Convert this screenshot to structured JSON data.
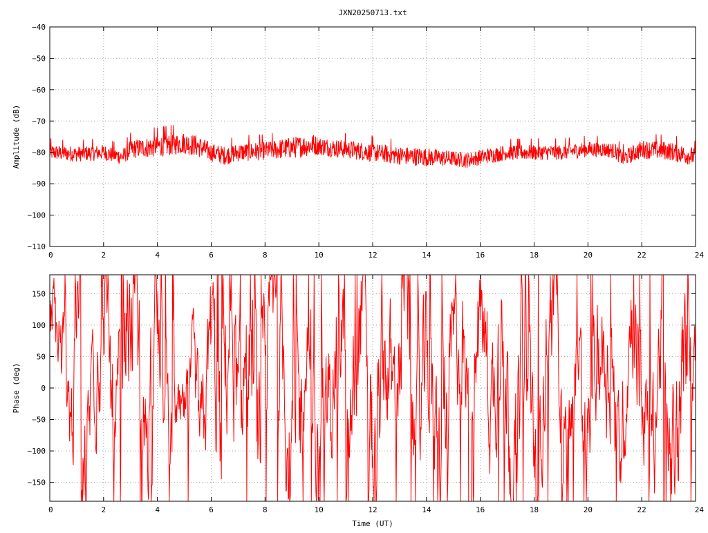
{
  "title": "JXN20250713.txt",
  "colors": {
    "series": "#ff0000",
    "axis": "#000000",
    "grid": "#a0a0a0",
    "background": "#ffffff"
  },
  "chart_data": [
    {
      "type": "line",
      "ylabel": "Amplitude (dB)",
      "xlabel": "",
      "xlim": [
        0,
        24
      ],
      "ylim": [
        -110,
        -40
      ],
      "xticks": [
        0,
        2,
        4,
        6,
        8,
        10,
        12,
        14,
        16,
        18,
        20,
        22,
        24
      ],
      "yticks": [
        -110,
        -100,
        -90,
        -80,
        -70,
        -60,
        -50,
        -40
      ],
      "grid": true,
      "series": [
        {
          "x": [
            0,
            1,
            2,
            2.7,
            3,
            4,
            5,
            5.5,
            6,
            6.5,
            7,
            8,
            9,
            9.8,
            10,
            11,
            12,
            13,
            14,
            15,
            15.5,
            16,
            17,
            18,
            19,
            20,
            20.5,
            21,
            21.3,
            22,
            23,
            24
          ],
          "values": [
            -80,
            -80.5,
            -80,
            -81.5,
            -79,
            -78,
            -77,
            -78,
            -80,
            -81,
            -80,
            -79.5,
            -78.5,
            -77.5,
            -78,
            -79,
            -80,
            -81,
            -81.5,
            -82,
            -82.5,
            -81.5,
            -80,
            -80,
            -80,
            -79,
            -79,
            -79.5,
            -82,
            -79,
            -79.5,
            -81.5
          ],
          "spread": [
            2.5,
            2.5,
            2.5,
            2.5,
            3,
            3.5,
            3.5,
            3.5,
            3,
            3,
            3,
            3,
            3.5,
            3.5,
            3,
            3,
            3,
            3,
            3,
            2.5,
            2.5,
            2.5,
            2.5,
            2.5,
            2.5,
            2.5,
            2.5,
            2.5,
            2.5,
            3,
            3,
            3
          ]
        }
      ]
    },
    {
      "type": "line",
      "ylabel": "Phase (deg)",
      "xlabel": "Time (UT)",
      "xlim": [
        0,
        24
      ],
      "ylim": [
        -180,
        180
      ],
      "xticks": [
        0,
        2,
        4,
        6,
        8,
        10,
        12,
        14,
        16,
        18,
        20,
        22,
        24
      ],
      "yticks": [
        -150,
        -100,
        -50,
        0,
        50,
        100,
        150
      ],
      "grid": true,
      "series": [
        {
          "x": [
            0,
            0.2,
            0.5,
            0.8,
            1.1,
            1.3,
            1.6,
            2.0,
            2.4,
            2.8,
            3.1,
            3.5,
            3.9,
            4.2,
            4.6,
            5.0,
            5.3,
            5.6,
            6.0,
            6.3,
            6.7,
            7.0,
            7.4,
            7.8,
            8.1,
            8.5,
            8.9,
            9.3,
            9.6,
            10.0,
            10.4,
            10.8,
            11.2,
            11.6,
            12.0,
            12.4,
            12.8,
            13.2,
            13.6,
            14.0,
            14.4,
            14.8,
            15.2,
            15.6,
            16.0,
            16.4,
            16.8,
            17.2,
            17.6,
            18.0,
            18.4,
            18.8,
            19.2,
            19.6,
            20.0,
            20.4,
            20.8,
            21.2,
            21.6,
            22.0,
            22.4,
            22.8,
            23.2,
            23.6,
            24.0
          ],
          "values": [
            120,
            90,
            30,
            -60,
            170,
            -140,
            60,
            150,
            -120,
            80,
            160,
            -100,
            140,
            -60,
            -80,
            -40,
            40,
            -110,
            120,
            -150,
            160,
            -90,
            110,
            -160,
            80,
            150,
            -120,
            -40,
            90,
            -170,
            20,
            130,
            -60,
            170,
            -130,
            60,
            -20,
            140,
            -90,
            50,
            -150,
            30,
            100,
            -80,
            140,
            -40,
            170,
            -170,
            120,
            -110,
            60,
            140,
            -60,
            30,
            -120,
            80,
            20,
            -100,
            140,
            -40,
            -90,
            170,
            -150,
            60,
            110
          ],
          "spread": [
            60,
            70,
            80,
            90,
            100,
            110,
            120,
            110,
            120,
            100,
            120,
            110,
            120,
            60,
            50,
            50,
            60,
            80,
            100,
            120,
            120,
            120,
            110,
            120,
            110,
            100,
            110,
            120,
            90,
            120,
            100,
            110,
            120,
            110,
            120,
            110,
            100,
            110,
            110,
            100,
            120,
            110,
            100,
            110,
            100,
            100,
            120,
            120,
            110,
            110,
            100,
            100,
            90,
            100,
            90,
            100,
            90,
            80,
            90,
            80,
            90,
            110,
            120,
            100,
            80
          ]
        }
      ]
    }
  ]
}
